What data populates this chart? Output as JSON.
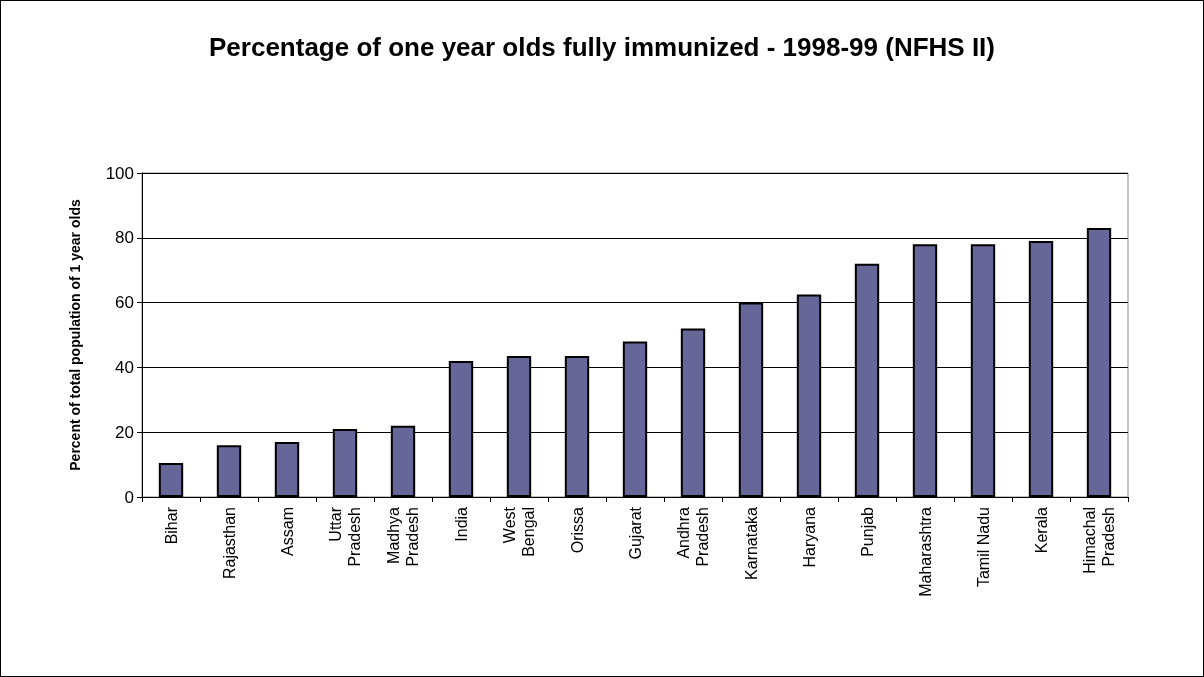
{
  "chart_data": {
    "type": "bar",
    "title": "Percentage of one year olds fully immunized - 1998-99 (NFHS II)",
    "ylabel": "Percent of total population of 1 year olds",
    "categories": [
      "Bihar",
      "Rajasthan",
      "Assam",
      "Uttar Pradesh",
      "Madhya Pradesh",
      "India",
      "West Bengal",
      "Orissa",
      "Gujarat",
      "Andhra Pradesh",
      "Karnataka",
      "Haryana",
      "Punjab",
      "Maharashtra",
      "Tamil Nadu",
      "Kerala",
      "Himachal Pradesh"
    ],
    "values": [
      10.5,
      16,
      17,
      21,
      22,
      42,
      43.5,
      43.5,
      48,
      52,
      60,
      62.5,
      72,
      78,
      78,
      79,
      83
    ],
    "color": "#666699",
    "ylim": [
      0,
      100
    ],
    "yticks": [
      0,
      20,
      40,
      60,
      80,
      100
    ],
    "grid": "y"
  }
}
